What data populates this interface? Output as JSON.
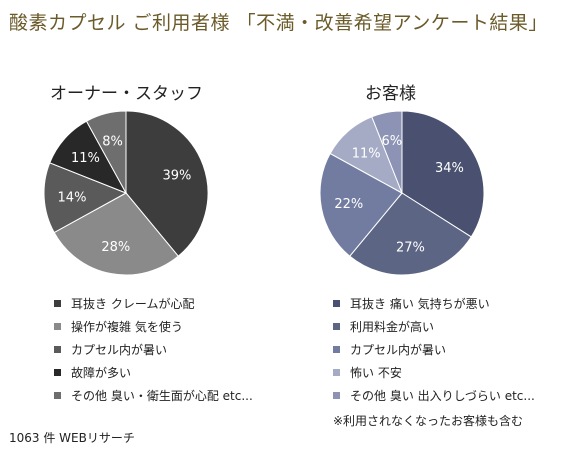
{
  "title": "酸素カプセル ご利用者様 「不満・改善希望アンケート結果」",
  "footer": "1063 件 WEBリサーチ",
  "note": "※利用されなくなったお客様も含む",
  "chart_data": [
    {
      "type": "pie",
      "title": "オーナー・スタッフ",
      "categories": [
        "耳抜き クレームが心配",
        "操作が複雑 気を使う",
        "カプセル内が暑い",
        "故障が多い",
        "その他 臭い・衛生面が心配 etc..."
      ],
      "values": [
        39,
        28,
        14,
        11,
        8
      ],
      "labels": [
        "39%",
        "28%",
        "14%",
        "11%",
        "8%"
      ],
      "colors": [
        "#3d3d3d",
        "#8a8a8a",
        "#5a5a5a",
        "#282828",
        "#6e6e6e"
      ],
      "legend": "bottom"
    },
    {
      "type": "pie",
      "title": "お客様",
      "categories": [
        "耳抜き 痛い 気持ちが悪い",
        "利用料金が高い",
        "カプセル内が暑い",
        "怖い 不安",
        "その他 臭い 出入りしづらい etc..."
      ],
      "values": [
        34,
        27,
        22,
        11,
        6
      ],
      "labels": [
        "34%",
        "27%",
        "22%",
        "11%",
        "6%"
      ],
      "colors": [
        "#4a5170",
        "#5c6584",
        "#727ca0",
        "#a5abc5",
        "#8c93b4"
      ],
      "legend": "bottom"
    }
  ]
}
